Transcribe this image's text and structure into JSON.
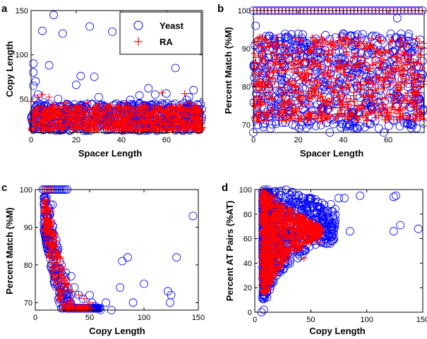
{
  "figure": {
    "panels": [
      "a",
      "b",
      "c",
      "d"
    ],
    "series_colors": {
      "Yeast": "#0000ff",
      "RA": "#ff0000"
    }
  },
  "chart_data": [
    {
      "panel": "a",
      "type": "scatter",
      "xlabel": "Spacer Length",
      "ylabel": "Copy Length",
      "xlim": [
        0,
        76
      ],
      "ylim": [
        12,
        150
      ],
      "xticks": [
        0,
        20,
        40,
        60
      ],
      "yticks": [
        50,
        100,
        150
      ],
      "legend": {
        "position": "top-right",
        "entries": [
          "Yeast",
          "RA"
        ]
      },
      "series": [
        {
          "name": "Yeast",
          "marker": "circle",
          "color": "#0000ff",
          "dense_band": {
            "x": [
              0,
              76
            ],
            "y": [
              14,
              45
            ]
          },
          "points": [
            [
              1,
              90
            ],
            [
              1,
              80
            ],
            [
              2,
              70
            ],
            [
              1,
              65
            ],
            [
              3,
              55
            ],
            [
              8,
              88
            ],
            [
              10,
              145
            ],
            [
              5,
              127
            ],
            [
              14,
              124
            ],
            [
              20,
              66
            ],
            [
              22,
              76
            ],
            [
              26,
              132
            ],
            [
              28,
              75
            ],
            [
              36,
              126
            ],
            [
              40,
              42
            ],
            [
              44,
              49
            ],
            [
              52,
              62
            ],
            [
              55,
              55
            ],
            [
              60,
              56
            ],
            [
              64,
              85
            ],
            [
              69,
              49
            ],
            [
              70,
              52
            ],
            [
              72,
              60
            ],
            [
              2,
              50
            ],
            [
              6,
              46
            ],
            [
              12,
              50
            ],
            [
              30,
              52
            ],
            [
              48,
              54
            ],
            [
              58,
              45
            ]
          ]
        },
        {
          "name": "RA",
          "marker": "plus",
          "color": "#ff0000",
          "dense_band": {
            "x": [
              0,
              76
            ],
            "y": [
              14,
              42
            ]
          },
          "points": [
            [
              0,
              47
            ],
            [
              3,
              52
            ],
            [
              5,
              55
            ],
            [
              8,
              52
            ],
            [
              10,
              44
            ],
            [
              15,
              46
            ],
            [
              25,
              46
            ],
            [
              30,
              44
            ],
            [
              42,
              45
            ],
            [
              58,
              57
            ],
            [
              66,
              44
            ],
            [
              68,
              56
            ],
            [
              70,
              46
            ],
            [
              73,
              42
            ],
            [
              50,
              44
            ],
            [
              35,
              43
            ]
          ]
        }
      ]
    },
    {
      "panel": "b",
      "type": "scatter",
      "xlabel": "Spacer Length",
      "ylabel": "Percent Match (%M)",
      "xlim": [
        0,
        76
      ],
      "ylim": [
        68,
        100
      ],
      "xticks": [
        0,
        20,
        40,
        60
      ],
      "yticks": [
        70,
        80,
        90,
        100
      ],
      "series": [
        {
          "name": "Yeast",
          "marker": "circle",
          "color": "#0000ff",
          "row": {
            "x": [
              0,
              76
            ],
            "y": 100
          },
          "dense_band": {
            "x": [
              0,
              76
            ],
            "y": [
              69,
              94
            ]
          },
          "points": [
            [
              1,
              96
            ],
            [
              64,
              98
            ],
            [
              0,
              68
            ],
            [
              34,
              68
            ],
            [
              58,
              68
            ]
          ]
        },
        {
          "name": "RA",
          "marker": "plus",
          "color": "#ff0000",
          "row": {
            "x": [
              0,
              76
            ],
            "y": 100
          },
          "dense_band": {
            "x": [
              0,
              76
            ],
            "y": [
              71,
              93
            ]
          },
          "points": []
        }
      ]
    },
    {
      "panel": "c",
      "type": "scatter",
      "xlabel": "Copy Length",
      "ylabel": "Percent Match (%M)",
      "xlim": [
        0,
        150
      ],
      "ylim": [
        68,
        100
      ],
      "xticks": [
        0,
        50,
        100,
        150
      ],
      "yticks": [
        70,
        80,
        90,
        100
      ],
      "series": [
        {
          "name": "Yeast",
          "marker": "circle",
          "color": "#0000ff",
          "row": {
            "x": [
              7,
              30
            ],
            "y": 100
          },
          "curve": "decay",
          "points": [
            [
              8,
              91
            ],
            [
              10,
              93
            ],
            [
              12,
              95
            ],
            [
              14,
              96
            ],
            [
              16,
              96
            ],
            [
              11,
              88
            ],
            [
              15,
              85
            ],
            [
              20,
              84
            ],
            [
              24,
              80
            ],
            [
              28,
              78
            ],
            [
              33,
              77
            ],
            [
              36,
              74
            ],
            [
              40,
              72
            ],
            [
              44,
              71
            ],
            [
              50,
              72
            ],
            [
              52,
              70
            ],
            [
              55,
              69
            ],
            [
              60,
              68
            ],
            [
              65,
              70
            ],
            [
              70,
              68
            ],
            [
              78,
              74
            ],
            [
              80,
              81
            ],
            [
              85,
              82
            ],
            [
              90,
              70
            ],
            [
              100,
              75
            ],
            [
              122,
              73
            ],
            [
              125,
              72
            ],
            [
              124,
              70
            ],
            [
              130,
              82
            ],
            [
              145,
              93
            ]
          ]
        },
        {
          "name": "RA",
          "marker": "plus",
          "color": "#ff0000",
          "row": {
            "x": [
              7,
              18
            ],
            "y": 100
          },
          "curve": "decay",
          "points": [
            [
              12,
              90
            ],
            [
              14,
              86
            ],
            [
              18,
              82
            ],
            [
              22,
              79
            ],
            [
              26,
              77
            ],
            [
              30,
              75
            ],
            [
              34,
              73
            ],
            [
              40,
              72
            ],
            [
              45,
              71
            ],
            [
              50,
              70
            ]
          ]
        }
      ]
    },
    {
      "panel": "d",
      "type": "scatter",
      "xlabel": "Copy Length",
      "ylabel": "Percent AT Pairs (%AT)",
      "xlim": [
        0,
        150
      ],
      "ylim": [
        0,
        100
      ],
      "xticks": [
        0,
        50,
        100,
        150
      ],
      "yticks": [
        0,
        20,
        40,
        60,
        80,
        100
      ],
      "series": [
        {
          "name": "Yeast",
          "marker": "circle",
          "color": "#0000ff",
          "fan": {
            "apex": [
              7,
              0
            ],
            "upper": [
              [
                7,
                100
              ],
              [
                30,
                100
              ],
              [
                55,
                92
              ],
              [
                70,
                85
              ],
              [
                95,
                80
              ]
            ],
            "lower": [
              [
                10,
                10
              ],
              [
                20,
                30
              ],
              [
                40,
                45
              ],
              [
                55,
                55
              ]
            ]
          },
          "points": [
            [
              6,
              0
            ],
            [
              8,
              2
            ],
            [
              75,
              93
            ],
            [
              80,
              93
            ],
            [
              94,
              95
            ],
            [
              124,
              94
            ],
            [
              126,
              95
            ],
            [
              124,
              66
            ],
            [
              130,
              71
            ],
            [
              146,
              68
            ],
            [
              85,
              66
            ],
            [
              72,
              75
            ],
            [
              60,
              80
            ],
            [
              68,
              88
            ]
          ]
        },
        {
          "name": "RA",
          "marker": "plus",
          "color": "#ff0000",
          "fan": {
            "apex": [
              7,
              0
            ],
            "upper": [
              [
                7,
                100
              ],
              [
                20,
                92
              ],
              [
                40,
                80
              ],
              [
                58,
                70
              ]
            ],
            "lower": [
              [
                10,
                15
              ],
              [
                25,
                40
              ],
              [
                45,
                55
              ],
              [
                58,
                62
              ]
            ]
          },
          "points": [
            [
              44,
              44
            ],
            [
              58,
              57
            ],
            [
              55,
              63
            ],
            [
              50,
              65
            ],
            [
              60,
              66
            ]
          ]
        }
      ]
    }
  ]
}
